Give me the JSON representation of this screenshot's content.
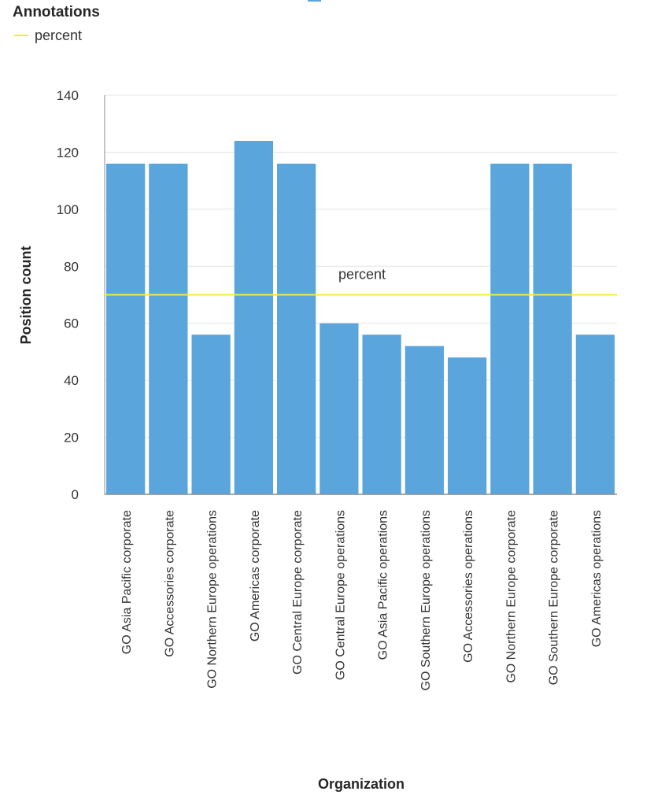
{
  "legend": {
    "title": "Annotations",
    "items": [
      {
        "label": "percent",
        "color": "#f0ee3c"
      }
    ]
  },
  "chart_data": {
    "type": "bar",
    "xlabel": "Organization",
    "ylabel": "Position count",
    "ylim": [
      0,
      140
    ],
    "yticks": [
      0,
      20,
      40,
      60,
      80,
      100,
      120,
      140
    ],
    "grid": true,
    "legend_position": "top-left",
    "bar_color": "#5aa5dc",
    "categories": [
      "GO Asia Pacific corporate",
      "GO Accessories corporate",
      "GO Northern Europe operations",
      "GO Americas corporate",
      "GO Central Europe corporate",
      "GO Central Europe operations",
      "GO Asia Pacific operations",
      "GO Southern Europe operations",
      "GO Accessories operations",
      "GO Northern Europe corporate",
      "GO Southern Europe corporate",
      "GO Americas operations"
    ],
    "values": [
      116,
      116,
      56,
      124,
      116,
      60,
      56,
      52,
      48,
      116,
      116,
      56
    ],
    "annotations": [
      {
        "type": "reference-line",
        "label": "percent",
        "value": 70,
        "color": "#f0ee3c"
      }
    ]
  }
}
